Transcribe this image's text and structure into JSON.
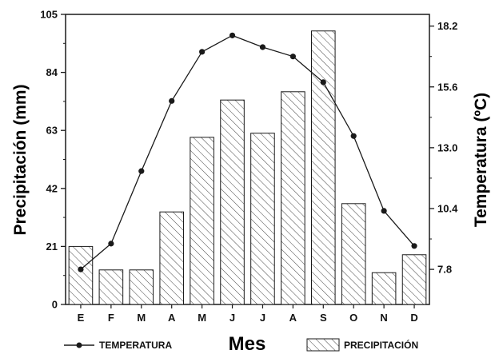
{
  "chart_data": {
    "type": "bar",
    "categories": [
      "E",
      "F",
      "M",
      "A",
      "M",
      "J",
      "J",
      "A",
      "S",
      "O",
      "N",
      "D"
    ],
    "xlabel": "Mes",
    "ylabel": "Precipitación (mm)",
    "y2label": "Temperatura (ºC)",
    "ylim": [
      0,
      105
    ],
    "y2lim": [
      6.3,
      18.7
    ],
    "yticks": [
      "0",
      "21",
      "42",
      "63",
      "84",
      "105"
    ],
    "y2ticks": [
      "7.8",
      "10.4",
      "13.0",
      "15.6",
      "18.2"
    ],
    "grid": false,
    "legend_position": "bottom",
    "series": [
      {
        "name": "PRECIPITACIÓN",
        "type": "bar",
        "axis": "left",
        "pattern": "diagonal-hatch",
        "values": [
          21,
          12.5,
          12.5,
          33.5,
          60.5,
          74,
          62,
          77,
          99,
          36.5,
          11.5,
          18
        ]
      },
      {
        "name": "TEMPERATURA",
        "type": "line",
        "axis": "right",
        "marker": "circle",
        "values": [
          7.8,
          8.9,
          12.0,
          15.0,
          17.1,
          17.8,
          17.3,
          16.9,
          15.8,
          13.5,
          10.3,
          8.8
        ]
      }
    ]
  },
  "colors": {
    "line": "#1a1a1a",
    "hatch": "#444444",
    "bar_fill": "#ffffff"
  }
}
